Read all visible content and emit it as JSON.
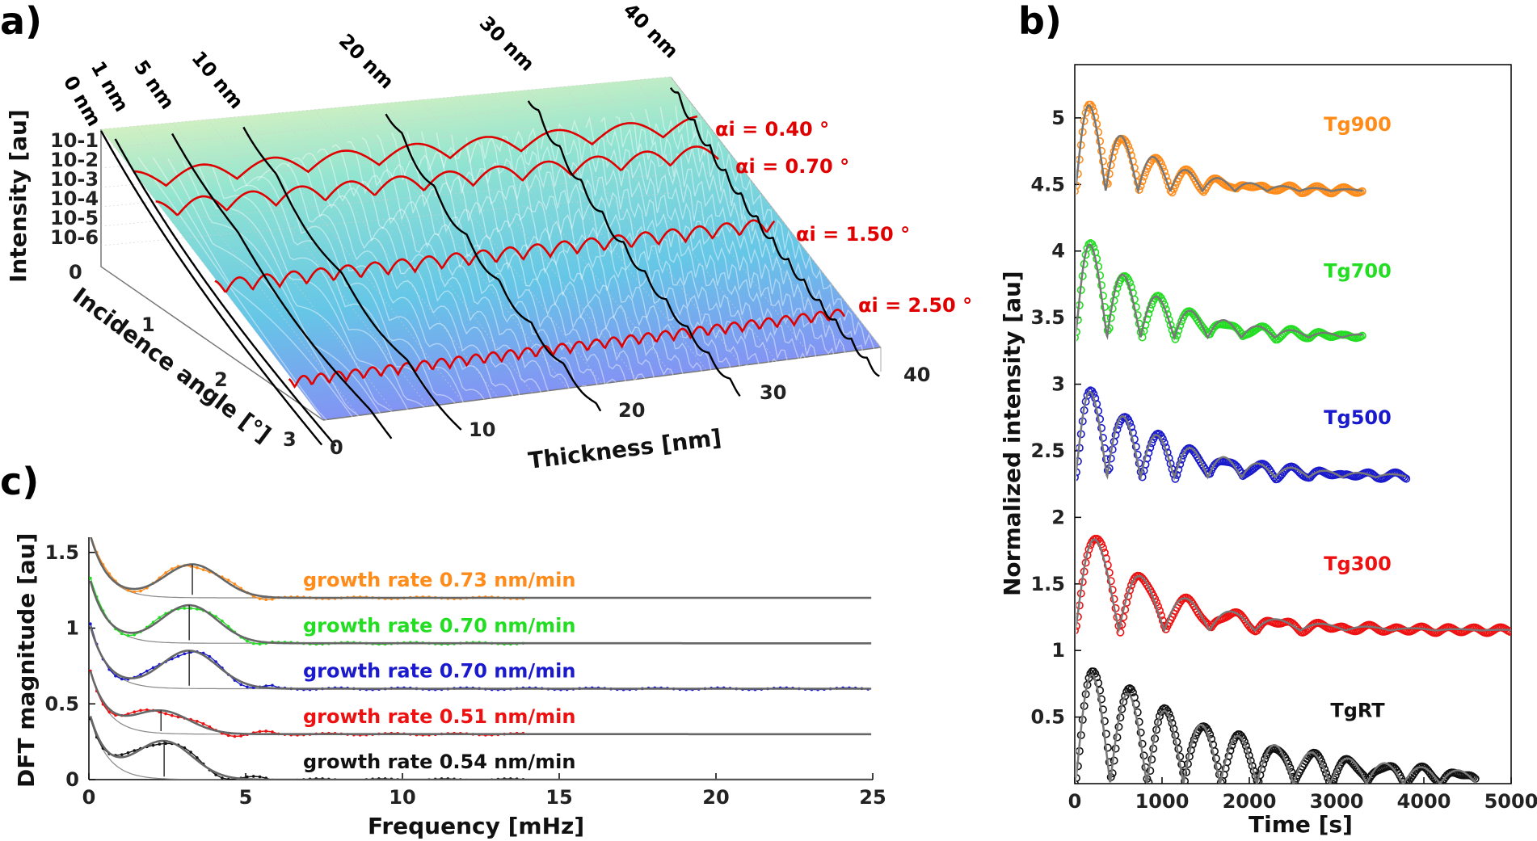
{
  "panels": {
    "a": "a)",
    "b": "b)",
    "c": "c)"
  },
  "chart_data": [
    {
      "panel": "a",
      "type": "surface",
      "xlabel": "Thickness [nm]",
      "ylabel": "Incidence angle [°]",
      "zlabel": "Intensity [au]",
      "x_ticks": [
        "0",
        "10",
        "20",
        "30",
        "40"
      ],
      "y_ticks": [
        "0",
        "1",
        "2",
        "3"
      ],
      "z_ticks": [
        "10-6",
        "10-5",
        "10-4",
        "10-3",
        "10-2",
        "10-1"
      ],
      "xlim": [
        0,
        40
      ],
      "ylim": [
        0,
        3
      ],
      "thickness_cuts": [
        "0 nm",
        "1 nm",
        "5 nm",
        "10 nm",
        "20 nm",
        "30 nm",
        "40 nm"
      ],
      "angle_cuts": [
        {
          "label": "αi = 0.40 °",
          "angle": 0.4
        },
        {
          "label": "αi = 0.70 °",
          "angle": 0.7
        },
        {
          "label": "αi = 1.50 °",
          "angle": 1.5
        },
        {
          "label": "αi = 2.50 °",
          "angle": 2.5
        }
      ]
    },
    {
      "panel": "b",
      "type": "scatter",
      "xlabel": "Time [s]",
      "ylabel": "Normalized intensity [au]",
      "xlim": [
        0,
        5000
      ],
      "ylim": [
        0,
        5.4
      ],
      "x_ticks": [
        "0",
        "1000",
        "2000",
        "3000",
        "4000",
        "5000"
      ],
      "y_ticks": [
        "0.5",
        "1",
        "1.5",
        "2",
        "2.5",
        "3",
        "3.5",
        "4",
        "4.5",
        "5"
      ],
      "series": [
        {
          "name": "Tg900",
          "color": "#ff8c1a",
          "offset": 4.45,
          "amp": 0.9,
          "period": 370,
          "decay": 700,
          "tmax": 3300
        },
        {
          "name": "Tg700",
          "color": "#22dd22",
          "offset": 3.35,
          "amp": 0.95,
          "period": 385,
          "decay": 820,
          "tmax": 3300
        },
        {
          "name": "Tg500",
          "color": "#1a1acc",
          "offset": 2.3,
          "amp": 0.85,
          "period": 385,
          "decay": 950,
          "tmax": 3800
        },
        {
          "name": "Tg300",
          "color": "#ee1111",
          "offset": 1.15,
          "amp": 0.95,
          "period": 520,
          "decay": 900,
          "tmax": 5000
        },
        {
          "name": "TgRT",
          "color": "#111111",
          "offset": 0.0,
          "amp": 1.0,
          "period": 420,
          "decay": 1800,
          "tmax": 4600
        }
      ]
    },
    {
      "panel": "c",
      "type": "line",
      "xlabel": "Frequency [mHz]",
      "ylabel": "DFT magnitude [au]",
      "xlim": [
        0,
        25
      ],
      "ylim": [
        0,
        1.6
      ],
      "x_ticks": [
        "0",
        "5",
        "10",
        "15",
        "20",
        "25"
      ],
      "y_ticks": [
        "0",
        "0.5",
        "1",
        "1.5"
      ],
      "series": [
        {
          "label": "growth rate 0.73 nm/min",
          "color": "#ff8c1a",
          "baseline": 1.2,
          "peak_freq": 3.3,
          "peak_amp": 0.22
        },
        {
          "label": "growth rate 0.70 nm/min",
          "color": "#22dd22",
          "baseline": 0.9,
          "peak_freq": 3.2,
          "peak_amp": 0.25
        },
        {
          "label": "growth rate 0.70 nm/min",
          "color": "#1a1acc",
          "baseline": 0.6,
          "peak_freq": 3.2,
          "peak_amp": 0.25
        },
        {
          "label": "growth rate 0.51 nm/min",
          "color": "#ee1111",
          "baseline": 0.3,
          "peak_freq": 2.3,
          "peak_amp": 0.15
        },
        {
          "label": "growth rate 0.54 nm/min",
          "color": "#111111",
          "baseline": 0.0,
          "peak_freq": 2.4,
          "peak_amp": 0.25
        }
      ]
    }
  ]
}
